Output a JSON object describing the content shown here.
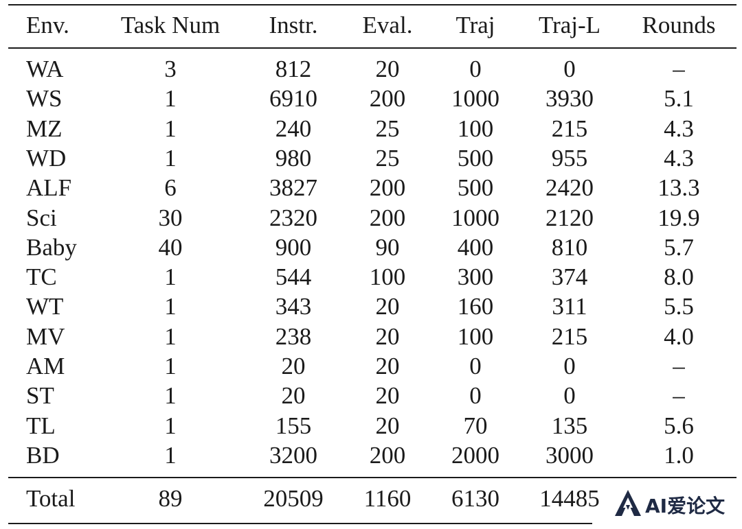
{
  "table": {
    "columns": [
      "Env.",
      "Task Num",
      "Instr.",
      "Eval.",
      "Traj",
      "Traj-L",
      "Rounds"
    ],
    "rows": [
      {
        "env": "WA",
        "task_num": "3",
        "instr": "812",
        "eval": "20",
        "traj": "0",
        "traj_l": "0",
        "rounds": "–"
      },
      {
        "env": "WS",
        "task_num": "1",
        "instr": "6910",
        "eval": "200",
        "traj": "1000",
        "traj_l": "3930",
        "rounds": "5.1"
      },
      {
        "env": "MZ",
        "task_num": "1",
        "instr": "240",
        "eval": "25",
        "traj": "100",
        "traj_l": "215",
        "rounds": "4.3"
      },
      {
        "env": "WD",
        "task_num": "1",
        "instr": "980",
        "eval": "25",
        "traj": "500",
        "traj_l": "955",
        "rounds": "4.3"
      },
      {
        "env": "ALF",
        "task_num": "6",
        "instr": "3827",
        "eval": "200",
        "traj": "500",
        "traj_l": "2420",
        "rounds": "13.3"
      },
      {
        "env": "Sci",
        "task_num": "30",
        "instr": "2320",
        "eval": "200",
        "traj": "1000",
        "traj_l": "2120",
        "rounds": "19.9"
      },
      {
        "env": "Baby",
        "task_num": "40",
        "instr": "900",
        "eval": "90",
        "traj": "400",
        "traj_l": "810",
        "rounds": "5.7"
      },
      {
        "env": "TC",
        "task_num": "1",
        "instr": "544",
        "eval": "100",
        "traj": "300",
        "traj_l": "374",
        "rounds": "8.0"
      },
      {
        "env": "WT",
        "task_num": "1",
        "instr": "343",
        "eval": "20",
        "traj": "160",
        "traj_l": "311",
        "rounds": "5.5"
      },
      {
        "env": "MV",
        "task_num": "1",
        "instr": "238",
        "eval": "20",
        "traj": "100",
        "traj_l": "215",
        "rounds": "4.0"
      },
      {
        "env": "AM",
        "task_num": "1",
        "instr": "20",
        "eval": "20",
        "traj": "0",
        "traj_l": "0",
        "rounds": "–"
      },
      {
        "env": "ST",
        "task_num": "1",
        "instr": "20",
        "eval": "20",
        "traj": "0",
        "traj_l": "0",
        "rounds": "–"
      },
      {
        "env": "TL",
        "task_num": "1",
        "instr": "155",
        "eval": "20",
        "traj": "70",
        "traj_l": "135",
        "rounds": "5.6"
      },
      {
        "env": "BD",
        "task_num": "1",
        "instr": "3200",
        "eval": "200",
        "traj": "2000",
        "traj_l": "3000",
        "rounds": "1.0"
      }
    ],
    "total": {
      "env": "Total",
      "task_num": "89",
      "instr": "20509",
      "eval": "1160",
      "traj": "6130",
      "traj_l": "14485"
    }
  },
  "watermark": {
    "text": "AI爱论文",
    "color": "#1f2a44"
  }
}
